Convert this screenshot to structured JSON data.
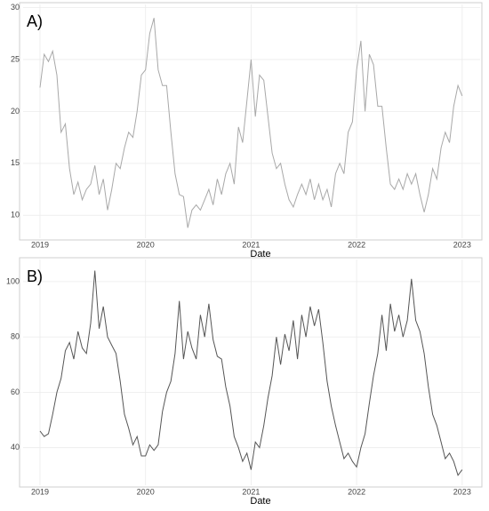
{
  "chart_data": [
    {
      "type": "line",
      "title": "A)",
      "xlabel": "Date",
      "color": "#a8a8a8",
      "grid": true,
      "xlim": [
        2018.84,
        2023.17
      ],
      "xticks": [
        2019,
        2020,
        2021,
        2022,
        2023
      ],
      "ylim": [
        7.8,
        30.3
      ],
      "yticks": [
        10,
        15,
        20,
        25,
        30
      ],
      "x": [
        2019,
        2019.04,
        2019.08,
        2019.12,
        2019.16,
        2019.2,
        2019.24,
        2019.28,
        2019.32,
        2019.36,
        2019.4,
        2019.44,
        2019.48,
        2019.52,
        2019.56,
        2019.6,
        2019.64,
        2019.68,
        2019.72,
        2019.76,
        2019.8,
        2019.84,
        2019.88,
        2019.92,
        2019.96,
        2020,
        2020.04,
        2020.08,
        2020.12,
        2020.16,
        2020.2,
        2020.24,
        2020.28,
        2020.32,
        2020.36,
        2020.4,
        2020.44,
        2020.48,
        2020.52,
        2020.56,
        2020.6,
        2020.64,
        2020.68,
        2020.72,
        2020.76,
        2020.8,
        2020.84,
        2020.88,
        2020.92,
        2020.96,
        2021,
        2021.04,
        2021.08,
        2021.12,
        2021.16,
        2021.2,
        2021.24,
        2021.28,
        2021.32,
        2021.36,
        2021.4,
        2021.44,
        2021.48,
        2021.52,
        2021.56,
        2021.6,
        2021.64,
        2021.68,
        2021.72,
        2021.76,
        2021.8,
        2021.84,
        2021.88,
        2021.92,
        2021.96,
        2022,
        2022.04,
        2022.08,
        2022.12,
        2022.16,
        2022.2,
        2022.24,
        2022.28,
        2022.32,
        2022.36,
        2022.4,
        2022.44,
        2022.48,
        2022.52,
        2022.56,
        2022.6,
        2022.64,
        2022.68,
        2022.72,
        2022.76,
        2022.8,
        2022.84,
        2022.88,
        2022.92,
        2022.96,
        2023
      ],
      "values": [
        22.3,
        25.5,
        24.8,
        25.8,
        23.5,
        18,
        18.8,
        14.5,
        12,
        13.2,
        11.5,
        12.5,
        13,
        14.8,
        12,
        13.5,
        10.5,
        12.5,
        15,
        14.5,
        16.5,
        18,
        17.5,
        20,
        23.5,
        24,
        27.5,
        29,
        24,
        22.5,
        22.5,
        18,
        14,
        12,
        11.8,
        8.8,
        10.5,
        11,
        10.5,
        11.5,
        12.5,
        11,
        13.5,
        12,
        14,
        15,
        13,
        18.5,
        17,
        21,
        25,
        19.5,
        23.5,
        23,
        19.5,
        16,
        14.5,
        15,
        13,
        11.5,
        10.8,
        12,
        13,
        12,
        13.5,
        11.5,
        13,
        11.5,
        12.5,
        10.8,
        14,
        15,
        14,
        18,
        19,
        24,
        26.8,
        20,
        25.5,
        24.5,
        20.5,
        20.5,
        16.5,
        13,
        12.5,
        13.5,
        12.5,
        14,
        13,
        14,
        12,
        10.3,
        12,
        14.5,
        13.5,
        16.5,
        18,
        17,
        20.5,
        22.5,
        21.5
      ]
    },
    {
      "type": "line",
      "title": "B)",
      "xlabel": "Date",
      "color": "#555555",
      "grid": true,
      "xlim": [
        2018.84,
        2023.17
      ],
      "xticks": [
        2019,
        2020,
        2021,
        2022,
        2023
      ],
      "ylim": [
        26.4,
        108
      ],
      "yticks": [
        40,
        60,
        80,
        100
      ],
      "x": [
        2019,
        2019.04,
        2019.08,
        2019.12,
        2019.16,
        2019.2,
        2019.24,
        2019.28,
        2019.32,
        2019.36,
        2019.4,
        2019.44,
        2019.48,
        2019.52,
        2019.56,
        2019.6,
        2019.64,
        2019.68,
        2019.72,
        2019.76,
        2019.8,
        2019.84,
        2019.88,
        2019.92,
        2019.96,
        2020,
        2020.04,
        2020.08,
        2020.12,
        2020.16,
        2020.2,
        2020.24,
        2020.28,
        2020.32,
        2020.36,
        2020.4,
        2020.44,
        2020.48,
        2020.52,
        2020.56,
        2020.6,
        2020.64,
        2020.68,
        2020.72,
        2020.76,
        2020.8,
        2020.84,
        2020.88,
        2020.92,
        2020.96,
        2021,
        2021.04,
        2021.08,
        2021.12,
        2021.16,
        2021.2,
        2021.24,
        2021.28,
        2021.32,
        2021.36,
        2021.4,
        2021.44,
        2021.48,
        2021.52,
        2021.56,
        2021.6,
        2021.64,
        2021.68,
        2021.72,
        2021.76,
        2021.8,
        2021.84,
        2021.88,
        2021.92,
        2021.96,
        2022,
        2022.04,
        2022.08,
        2022.12,
        2022.16,
        2022.2,
        2022.24,
        2022.28,
        2022.32,
        2022.36,
        2022.4,
        2022.44,
        2022.48,
        2022.52,
        2022.56,
        2022.6,
        2022.64,
        2022.68,
        2022.72,
        2022.76,
        2022.8,
        2022.84,
        2022.88,
        2022.92,
        2022.96,
        2023
      ],
      "values": [
        46,
        44,
        45,
        52,
        60,
        65,
        75,
        78,
        72,
        82,
        76,
        74,
        85,
        104,
        83,
        91,
        80,
        77,
        74,
        64,
        52,
        47,
        41,
        44,
        37,
        37,
        41,
        39,
        41,
        53,
        60,
        64,
        74,
        93,
        72,
        82,
        76,
        72,
        88,
        80,
        92,
        79,
        73,
        72,
        62,
        55,
        44,
        40,
        35,
        38,
        32,
        42,
        40,
        48,
        58,
        66,
        80,
        70,
        81,
        75,
        86,
        72,
        88,
        80,
        91,
        84,
        90,
        78,
        64,
        55,
        48,
        42,
        36,
        38,
        35,
        33,
        40,
        45,
        56,
        66,
        74,
        88,
        75,
        92,
        82,
        88,
        80,
        86,
        101,
        86,
        82,
        74,
        62,
        52,
        48,
        42,
        36,
        38,
        35,
        30,
        32
      ]
    }
  ]
}
